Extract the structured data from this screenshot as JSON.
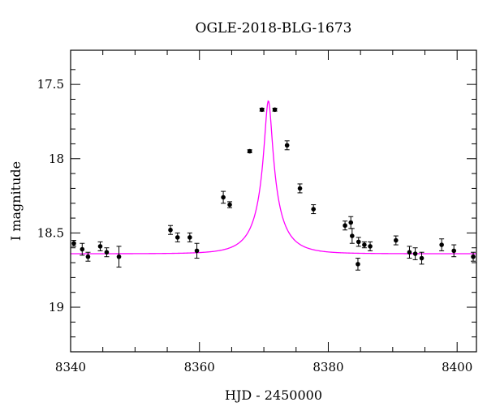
{
  "chart_data": {
    "type": "scatter",
    "title": "OGLE-2018-BLG-1673",
    "xlabel": "HJD - 2450000",
    "ylabel": "I magnitude",
    "xlim": [
      8340,
      8403
    ],
    "ylim": [
      19.3,
      17.27
    ],
    "y_inverted": true,
    "grid": false,
    "x_ticks": [
      8340,
      8360,
      8380,
      8400
    ],
    "y_ticks": [
      17.5,
      18,
      18.5,
      19
    ],
    "x_tick_labels": [
      "8340",
      "8360",
      "8380",
      "8400"
    ],
    "y_tick_labels": [
      "17.5",
      "18",
      "18.5",
      "19"
    ],
    "point_color": "#000000",
    "model_color": "#ff00ff",
    "points": [
      {
        "x": 8340.5,
        "y": 18.57,
        "err": 0.02
      },
      {
        "x": 8341.8,
        "y": 18.61,
        "err": 0.04
      },
      {
        "x": 8342.7,
        "y": 18.66,
        "err": 0.03
      },
      {
        "x": 8344.6,
        "y": 18.59,
        "err": 0.03
      },
      {
        "x": 8345.6,
        "y": 18.63,
        "err": 0.03
      },
      {
        "x": 8347.5,
        "y": 18.66,
        "err": 0.07
      },
      {
        "x": 8355.5,
        "y": 18.48,
        "err": 0.03
      },
      {
        "x": 8356.6,
        "y": 18.53,
        "err": 0.03
      },
      {
        "x": 8358.5,
        "y": 18.53,
        "err": 0.03
      },
      {
        "x": 8359.6,
        "y": 18.62,
        "err": 0.05
      },
      {
        "x": 8363.7,
        "y": 18.26,
        "err": 0.04
      },
      {
        "x": 8364.7,
        "y": 18.31,
        "err": 0.02
      },
      {
        "x": 8367.8,
        "y": 17.95,
        "err": 0.01
      },
      {
        "x": 8369.7,
        "y": 17.67,
        "err": 0.01
      },
      {
        "x": 8371.7,
        "y": 17.67,
        "err": 0.01
      },
      {
        "x": 8373.6,
        "y": 17.91,
        "err": 0.03
      },
      {
        "x": 8375.6,
        "y": 18.2,
        "err": 0.03
      },
      {
        "x": 8377.7,
        "y": 18.34,
        "err": 0.03
      },
      {
        "x": 8382.6,
        "y": 18.45,
        "err": 0.03
      },
      {
        "x": 8383.5,
        "y": 18.43,
        "err": 0.04
      },
      {
        "x": 8383.7,
        "y": 18.52,
        "err": 0.05
      },
      {
        "x": 8384.6,
        "y": 18.71,
        "err": 0.04
      },
      {
        "x": 8384.7,
        "y": 18.56,
        "err": 0.03
      },
      {
        "x": 8385.6,
        "y": 18.58,
        "err": 0.02
      },
      {
        "x": 8386.5,
        "y": 18.59,
        "err": 0.03
      },
      {
        "x": 8390.5,
        "y": 18.55,
        "err": 0.03
      },
      {
        "x": 8392.6,
        "y": 18.63,
        "err": 0.04
      },
      {
        "x": 8393.5,
        "y": 18.64,
        "err": 0.04
      },
      {
        "x": 8394.5,
        "y": 18.67,
        "err": 0.04
      },
      {
        "x": 8397.6,
        "y": 18.58,
        "err": 0.04
      },
      {
        "x": 8399.5,
        "y": 18.62,
        "err": 0.04
      },
      {
        "x": 8402.5,
        "y": 18.66,
        "err": 0.03
      }
    ],
    "model": {
      "type": "line",
      "peak_x": 8370.7,
      "peak_y": 17.61,
      "baseline": 18.64,
      "tE": 4.3,
      "u0": 0.13
    }
  }
}
